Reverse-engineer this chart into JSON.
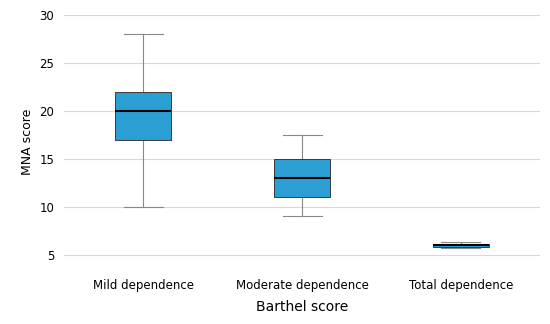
{
  "title": "",
  "xlabel": "Barthel score",
  "ylabel": "MNA score",
  "categories": [
    "Mild dependence",
    "Moderate dependence",
    "Total dependence"
  ],
  "boxes": [
    {
      "whisker_low": 10,
      "q1": 17,
      "median": 20,
      "q3": 22,
      "whisker_high": 28
    },
    {
      "whisker_low": 9,
      "q1": 11,
      "median": 13,
      "q3": 15,
      "whisker_high": 17.5
    },
    {
      "whisker_low": 5.7,
      "q1": 5.85,
      "median": 6.0,
      "q3": 6.15,
      "whisker_high": 6.3
    }
  ],
  "ylim": [
    3.5,
    30
  ],
  "yticks": [
    5,
    10,
    15,
    20,
    25,
    30
  ],
  "box_color": "#2B9FD4",
  "median_color": "#000000",
  "whisker_color": "#888888",
  "cap_color": "#888888",
  "background_color": "#ffffff",
  "grid_color": "#d8d8d8",
  "box_width": 0.35,
  "xlabel_fontsize": 10,
  "ylabel_fontsize": 9,
  "tick_fontsize": 8.5,
  "xlabel_bold": false
}
